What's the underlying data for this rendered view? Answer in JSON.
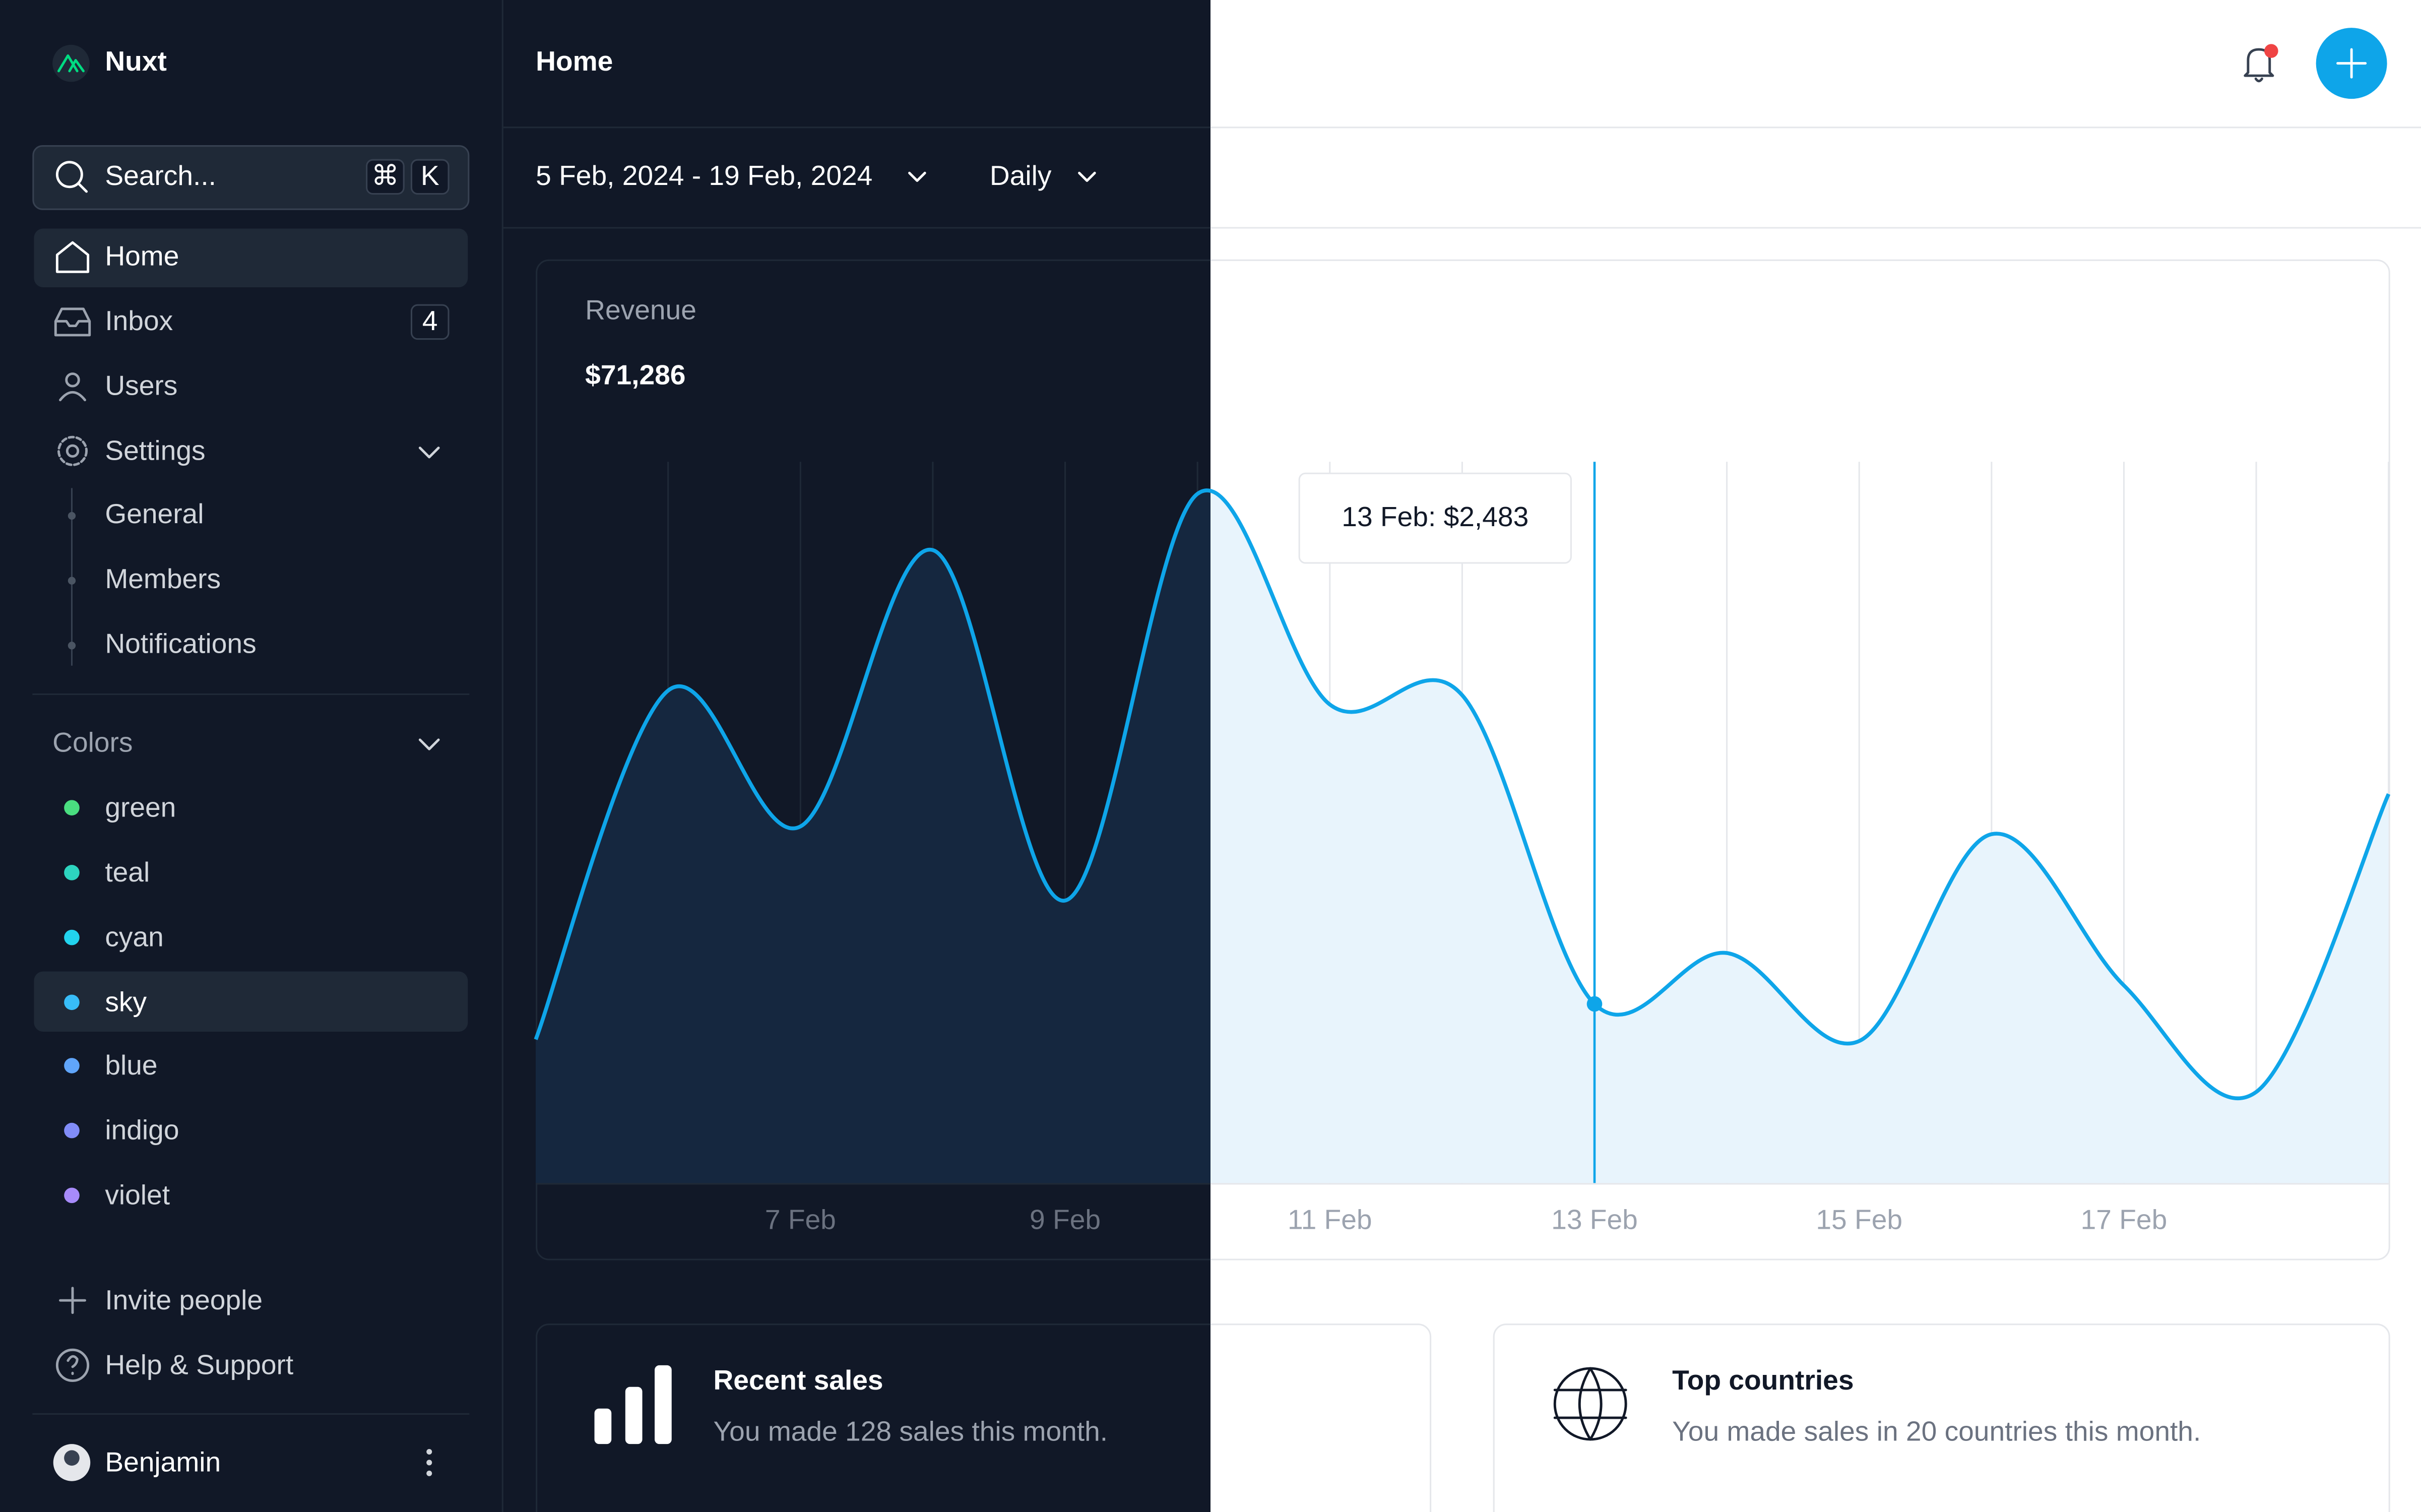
{
  "sidebar": {
    "brand": "Nuxt",
    "search": "Search...",
    "search_keys": [
      "⌘",
      "K"
    ],
    "nav": [
      {
        "label": "Home"
      },
      {
        "label": "Inbox",
        "badge": "4"
      },
      {
        "label": "Users"
      },
      {
        "label": "Settings"
      }
    ],
    "settings_children": [
      "General",
      "Members",
      "Notifications"
    ],
    "colors_heading": "Colors",
    "colors": [
      "green",
      "teal",
      "cyan",
      "sky",
      "blue",
      "indigo",
      "violet"
    ],
    "footer_links": [
      "Invite people",
      "Help & Support"
    ],
    "user": "Benjamin"
  },
  "header": {
    "title": "Home"
  },
  "toolbar": {
    "date_range": "5 Feb, 2024 - 19 Feb, 2024",
    "period": "Daily"
  },
  "chart_data": {
    "type": "area",
    "title": "Revenue",
    "total": "$71,286",
    "tooltip": "13 Feb: $2,483",
    "categories": [
      null,
      null,
      "7 Feb",
      null,
      "9 Feb",
      null,
      "11 Feb",
      null,
      "13 Feb",
      null,
      "15 Feb",
      null,
      "17 Feb",
      null,
      null
    ],
    "values": [
      1991,
      6828,
      4944,
      8776,
      3917,
      9556,
      6635,
      6764,
      2483,
      3189,
      1969,
      4837,
      2740,
      1263,
      5394
    ],
    "color": "#0ea5e9",
    "ylim": [
      0,
      10000
    ],
    "highlight": 8
  },
  "cards": [
    {
      "title": "Recent sales",
      "subtitle": "You made 128 sales this month."
    },
    {
      "title": "Top countries",
      "subtitle": "You made sales in 20 countries this month."
    }
  ]
}
